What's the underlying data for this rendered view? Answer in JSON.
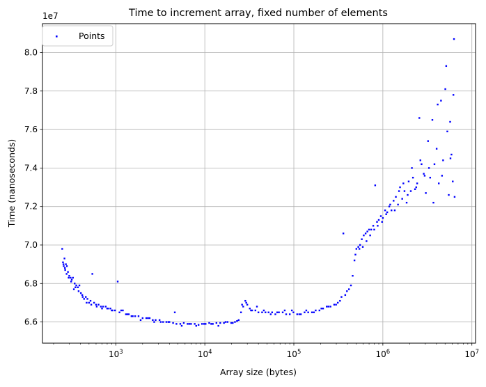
{
  "chart_data": {
    "type": "scatter",
    "title": "Time to increment array, fixed number of elements",
    "xlabel": "Array size (bytes)",
    "ylabel": "Time (nanoseconds)",
    "x_scale": "log",
    "xlim": [
      150,
      11000000
    ],
    "ylim": [
      64900000,
      81500000
    ],
    "y_offset_label": "1e7",
    "grid": true,
    "legend_position": "upper left",
    "x_ticks": [
      {
        "value": 1000,
        "base": "10",
        "exp": "3"
      },
      {
        "value": 10000,
        "base": "10",
        "exp": "4"
      },
      {
        "value": 100000,
        "base": "10",
        "exp": "5"
      },
      {
        "value": 1000000,
        "base": "10",
        "exp": "6"
      },
      {
        "value": 10000000,
        "base": "10",
        "exp": "7"
      }
    ],
    "y_ticks": [
      {
        "value": 66000000,
        "label": "6.6"
      },
      {
        "value": 68000000,
        "label": "6.8"
      },
      {
        "value": 70000000,
        "label": "7.0"
      },
      {
        "value": 72000000,
        "label": "7.2"
      },
      {
        "value": 74000000,
        "label": "7.4"
      },
      {
        "value": 76000000,
        "label": "7.6"
      },
      {
        "value": 78000000,
        "label": "7.8"
      },
      {
        "value": 80000000,
        "label": "8.0"
      }
    ],
    "series": [
      {
        "name": "Points",
        "color": "#0000ff",
        "points": [
          [
            250,
            69800000
          ],
          [
            255,
            69100000
          ],
          [
            260,
            68900000
          ],
          [
            265,
            69300000
          ],
          [
            270,
            68700000
          ],
          [
            275,
            69000000
          ],
          [
            280,
            68500000
          ],
          [
            290,
            68600000
          ],
          [
            300,
            68400000
          ],
          [
            310,
            68300000
          ],
          [
            320,
            68200000
          ],
          [
            330,
            68300000
          ],
          [
            345,
            68000000
          ],
          [
            360,
            67900000
          ],
          [
            375,
            67800000
          ],
          [
            390,
            67900000
          ],
          [
            405,
            67500000
          ],
          [
            420,
            67400000
          ],
          [
            440,
            67200000
          ],
          [
            460,
            67300000
          ],
          [
            480,
            67200000
          ],
          [
            500,
            67000000
          ],
          [
            520,
            67100000
          ],
          [
            545,
            68500000
          ],
          [
            570,
            67000000
          ],
          [
            600,
            66900000
          ],
          [
            640,
            66900000
          ],
          [
            680,
            66800000
          ],
          [
            720,
            66800000
          ],
          [
            770,
            66800000
          ],
          [
            820,
            66700000
          ],
          [
            870,
            66700000
          ],
          [
            920,
            66600000
          ],
          [
            980,
            66600000
          ],
          [
            1050,
            68100000
          ],
          [
            1100,
            66500000
          ],
          [
            1200,
            66600000
          ],
          [
            1300,
            66400000
          ],
          [
            1400,
            66400000
          ],
          [
            1500,
            66300000
          ],
          [
            1650,
            66300000
          ],
          [
            1800,
            66300000
          ],
          [
            2000,
            66200000
          ],
          [
            2200,
            66200000
          ],
          [
            2400,
            66200000
          ],
          [
            2600,
            66100000
          ],
          [
            2800,
            66100000
          ],
          [
            3100,
            66100000
          ],
          [
            3400,
            66000000
          ],
          [
            3700,
            66000000
          ],
          [
            4000,
            66000000
          ],
          [
            4400,
            65950000
          ],
          [
            4800,
            65900000
          ],
          [
            5300,
            65900000
          ],
          [
            5800,
            65950000
          ],
          [
            6400,
            65900000
          ],
          [
            7000,
            65900000
          ],
          [
            7700,
            65900000
          ],
          [
            8500,
            65850000
          ],
          [
            9300,
            65900000
          ],
          [
            10200,
            65900000
          ],
          [
            11200,
            65950000
          ],
          [
            12300,
            65900000
          ],
          [
            13500,
            65950000
          ],
          [
            14900,
            65950000
          ],
          [
            16400,
            65950000
          ],
          [
            18000,
            66000000
          ],
          [
            19800,
            65950000
          ],
          [
            21800,
            66000000
          ],
          [
            24000,
            66100000
          ],
          [
            25500,
            66500000
          ],
          [
            27000,
            66800000
          ],
          [
            28500,
            67100000
          ],
          [
            30000,
            66900000
          ],
          [
            32000,
            66700000
          ],
          [
            34000,
            66600000
          ],
          [
            37000,
            66600000
          ],
          [
            40000,
            66500000
          ],
          [
            44000,
            66500000
          ],
          [
            48000,
            66500000
          ],
          [
            52000,
            66500000
          ],
          [
            57000,
            66500000
          ],
          [
            62000,
            66400000
          ],
          [
            68000,
            66500000
          ],
          [
            75000,
            66500000
          ],
          [
            82000,
            66400000
          ],
          [
            90000,
            66400000
          ],
          [
            99000,
            66500000
          ],
          [
            109000,
            66400000
          ],
          [
            120000,
            66400000
          ],
          [
            132000,
            66500000
          ],
          [
            145000,
            66500000
          ],
          [
            160000,
            66500000
          ],
          [
            176000,
            66600000
          ],
          [
            194000,
            66600000
          ],
          [
            213000,
            66700000
          ],
          [
            234000,
            66800000
          ],
          [
            258000,
            66800000
          ],
          [
            284000,
            66900000
          ],
          [
            312000,
            67000000
          ],
          [
            343000,
            67300000
          ],
          [
            360000,
            70600000
          ],
          [
            378000,
            67400000
          ],
          [
            416000,
            67700000
          ],
          [
            458000,
            68400000
          ],
          [
            480000,
            69200000
          ],
          [
            504000,
            69800000
          ],
          [
            530000,
            69900000
          ],
          [
            555000,
            70000000
          ],
          [
            580000,
            70300000
          ],
          [
            610000,
            70500000
          ],
          [
            640000,
            70600000
          ],
          [
            670000,
            70700000
          ],
          [
            700000,
            70800000
          ],
          [
            740000,
            70800000
          ],
          [
            780000,
            71000000
          ],
          [
            820000,
            73100000
          ],
          [
            860000,
            71200000
          ],
          [
            900000,
            71300000
          ],
          [
            950000,
            71500000
          ],
          [
            1000000,
            71400000
          ],
          [
            1060000,
            71800000
          ],
          [
            1120000,
            71700000
          ],
          [
            1180000,
            72000000
          ],
          [
            1250000,
            71800000
          ],
          [
            1320000,
            72300000
          ],
          [
            1400000,
            72500000
          ],
          [
            1480000,
            72100000
          ],
          [
            1560000,
            73000000
          ],
          [
            1650000,
            72400000
          ],
          [
            1750000,
            72800000
          ],
          [
            1850000,
            72200000
          ],
          [
            1950000,
            73300000
          ],
          [
            2060000,
            72800000
          ],
          [
            2180000,
            73500000
          ],
          [
            2300000,
            72900000
          ],
          [
            2430000,
            73200000
          ],
          [
            2570000,
            76600000
          ],
          [
            2720000,
            74200000
          ],
          [
            2880000,
            73700000
          ],
          [
            3040000,
            72700000
          ],
          [
            3220000,
            75400000
          ],
          [
            3400000,
            73500000
          ],
          [
            3600000,
            76500000
          ],
          [
            3800000,
            74200000
          ],
          [
            4020000,
            75000000
          ],
          [
            4250000,
            73200000
          ],
          [
            4500000,
            77500000
          ],
          [
            4750000,
            74400000
          ],
          [
            5030000,
            78100000
          ],
          [
            5300000,
            75900000
          ],
          [
            5500000,
            72600000
          ],
          [
            5700000,
            76400000
          ],
          [
            5900000,
            74700000
          ],
          [
            6100000,
            73300000
          ],
          [
            6300000,
            80700000
          ],
          [
            6400000,
            72500000
          ],
          [
            258,
            69000000
          ],
          [
            268,
            68800000
          ],
          [
            282,
            68900000
          ],
          [
            295,
            68300000
          ],
          [
            315,
            68100000
          ],
          [
            338,
            67700000
          ],
          [
            352,
            67800000
          ],
          [
            382,
            67600000
          ],
          [
            425,
            67300000
          ],
          [
            470,
            67000000
          ],
          [
            530,
            66900000
          ],
          [
            610,
            66800000
          ],
          [
            700,
            66700000
          ],
          [
            800,
            66700000
          ],
          [
            900,
            66600000
          ],
          [
            1150,
            66600000
          ],
          [
            1350,
            66400000
          ],
          [
            1550,
            66300000
          ],
          [
            1900,
            66100000
          ],
          [
            2300,
            66200000
          ],
          [
            2700,
            66000000
          ],
          [
            3200,
            66000000
          ],
          [
            3900,
            66000000
          ],
          [
            4600,
            66500000
          ],
          [
            5500,
            65800000
          ],
          [
            6700,
            65900000
          ],
          [
            8000,
            65800000
          ],
          [
            9800,
            65900000
          ],
          [
            11800,
            65900000
          ],
          [
            14200,
            65800000
          ],
          [
            17100,
            66000000
          ],
          [
            20600,
            65950000
          ],
          [
            23000,
            66050000
          ],
          [
            26200,
            66900000
          ],
          [
            29200,
            67000000
          ],
          [
            33000,
            66600000
          ],
          [
            38500,
            66800000
          ],
          [
            46000,
            66600000
          ],
          [
            55000,
            66400000
          ],
          [
            65000,
            66500000
          ],
          [
            79000,
            66600000
          ],
          [
            95000,
            66600000
          ],
          [
            115000,
            66400000
          ],
          [
            138000,
            66600000
          ],
          [
            168000,
            66500000
          ],
          [
            204000,
            66700000
          ],
          [
            245000,
            66800000
          ],
          [
            298000,
            66900000
          ],
          [
            330000,
            67100000
          ],
          [
            395000,
            67600000
          ],
          [
            438000,
            67900000
          ],
          [
            492000,
            69500000
          ],
          [
            545000,
            69800000
          ],
          [
            595000,
            69900000
          ],
          [
            655000,
            70200000
          ],
          [
            720000,
            70500000
          ],
          [
            800000,
            70800000
          ],
          [
            875000,
            71000000
          ],
          [
            980000,
            71200000
          ],
          [
            1090000,
            71600000
          ],
          [
            1210000,
            72100000
          ],
          [
            1360000,
            71800000
          ],
          [
            1520000,
            72800000
          ],
          [
            1700000,
            73200000
          ],
          [
            1900000,
            72600000
          ],
          [
            2120000,
            74000000
          ],
          [
            2370000,
            73000000
          ],
          [
            2640000,
            74400000
          ],
          [
            2950000,
            73600000
          ],
          [
            3300000,
            74000000
          ],
          [
            3700000,
            72200000
          ],
          [
            4130000,
            77300000
          ],
          [
            4620000,
            73600000
          ],
          [
            5150000,
            79300000
          ],
          [
            5750000,
            74500000
          ],
          [
            6200000,
            77800000
          ]
        ]
      }
    ]
  }
}
